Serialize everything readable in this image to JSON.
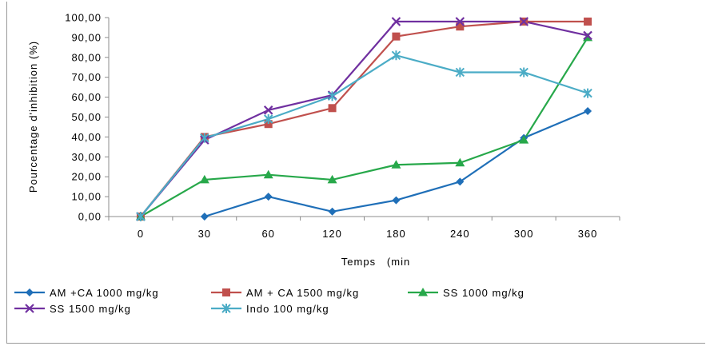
{
  "chart_data": {
    "type": "line",
    "title": "",
    "xlabel": "Temps   (min",
    "ylabel": "Pourcentage d'inhibition (%)",
    "categories": [
      "0",
      "30",
      "60",
      "120",
      "180",
      "240",
      "300",
      "360"
    ],
    "ylim": [
      0,
      100
    ],
    "yticks": [
      "0,00",
      "10,00",
      "20,00",
      "30,00",
      "40,00",
      "50,00",
      "60,00",
      "70,00",
      "80,00",
      "90,00",
      "100,00"
    ],
    "grid": false,
    "legend_position": "bottom",
    "series": [
      {
        "name": "AM +CA 1000 mg/kg",
        "color": "#1f6fb8",
        "marker": "diamond",
        "values": [
          null,
          0,
          10,
          2.5,
          8.2,
          17.5,
          39.5,
          53
        ]
      },
      {
        "name": "AM + CA 1500 mg/kg",
        "color": "#c0504d",
        "marker": "square",
        "values": [
          0,
          40,
          46.5,
          54.5,
          90.5,
          95.5,
          98,
          98
        ]
      },
      {
        "name": "SS 1000 mg/kg",
        "color": "#27a84a",
        "marker": "triangle",
        "values": [
          0,
          18.5,
          21,
          18.5,
          26,
          27,
          38.5,
          90
        ]
      },
      {
        "name": "SS 1500 mg/kg",
        "color": "#7030a0",
        "marker": "x",
        "values": [
          0,
          38.5,
          53.5,
          61,
          98,
          98,
          98,
          91
        ]
      },
      {
        "name": "Indo 100 mg/kg",
        "color": "#4bacc6",
        "marker": "star",
        "values": [
          0,
          39.5,
          49,
          60.5,
          81,
          72.5,
          72.5,
          62
        ]
      }
    ]
  }
}
